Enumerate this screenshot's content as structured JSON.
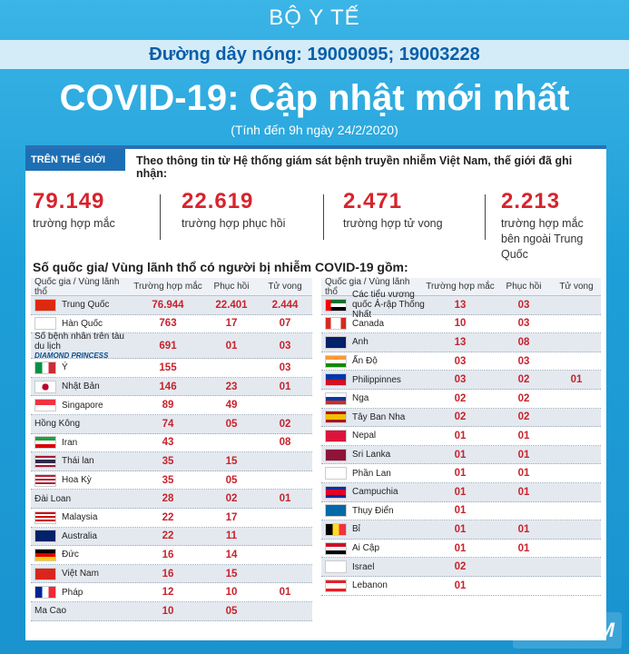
{
  "header": {
    "ministry": "BỘ Y TẾ",
    "hotline": "Đường dây nóng: 19009095; 19003228",
    "title": "COVID-19: Cập nhật mới nhất",
    "subtitle": "(Tính đến 9h ngày 24/2/2020)"
  },
  "world": {
    "tag": "TRÊN THẾ GIỚI",
    "intro": "Theo thông tin từ Hệ thống giám sát bệnh truyền nhiễm Việt Nam, thế giới đã ghi nhận:",
    "stats": [
      {
        "num": "79.149",
        "label": "trường hợp mắc"
      },
      {
        "num": "22.619",
        "label": "trường hợp phục hồi"
      },
      {
        "num": "2.471",
        "label": "trường hợp tử vong"
      },
      {
        "num": "2.213",
        "label": "trường hợp mắc bên ngoài Trung Quốc"
      }
    ],
    "count_title": "Số quốc gia/ Vùng lãnh thổ có người bị nhiễm COVID-19 gồm:"
  },
  "table_headers": {
    "name": "Quốc gia / Vùng lãnh thổ",
    "cases": "Trường hợp mắc",
    "recovered": "Phục hồi",
    "deaths": "Tử vong"
  },
  "left_rows": [
    {
      "name": "Trung Quốc",
      "cases": "76.944",
      "rec": "22.401",
      "dead": "2.444",
      "flag": "cn"
    },
    {
      "name": "Hàn Quốc",
      "cases": "763",
      "rec": "17",
      "dead": "07",
      "flag": "kr"
    },
    {
      "name": "Số bệnh nhân trên tàu du lịch",
      "cases": "691",
      "rec": "01",
      "dead": "03",
      "flag": "ship",
      "ship_label": "DIAMOND PRINCESS"
    },
    {
      "name": "Ý",
      "cases": "155",
      "rec": "",
      "dead": "03",
      "flag": "it"
    },
    {
      "name": "Nhật Bản",
      "cases": "146",
      "rec": "23",
      "dead": "01",
      "flag": "jp"
    },
    {
      "name": "Singapore",
      "cases": "89",
      "rec": "49",
      "dead": "",
      "flag": "sg"
    },
    {
      "name": "Hồng Kông",
      "cases": "74",
      "rec": "05",
      "dead": "02",
      "flag": ""
    },
    {
      "name": "Iran",
      "cases": "43",
      "rec": "",
      "dead": "08",
      "flag": "ir"
    },
    {
      "name": "Thái lan",
      "cases": "35",
      "rec": "15",
      "dead": "",
      "flag": "th"
    },
    {
      "name": "Hoa Kỳ",
      "cases": "35",
      "rec": "05",
      "dead": "",
      "flag": "us"
    },
    {
      "name": "Đài Loan",
      "cases": "28",
      "rec": "02",
      "dead": "01",
      "flag": ""
    },
    {
      "name": "Malaysia",
      "cases": "22",
      "rec": "17",
      "dead": "",
      "flag": "my"
    },
    {
      "name": "Australia",
      "cases": "22",
      "rec": "11",
      "dead": "",
      "flag": "au"
    },
    {
      "name": "Đức",
      "cases": "16",
      "rec": "14",
      "dead": "",
      "flag": "de"
    },
    {
      "name": "Việt Nam",
      "cases": "16",
      "rec": "15",
      "dead": "",
      "flag": "vn"
    },
    {
      "name": "Pháp",
      "cases": "12",
      "rec": "10",
      "dead": "01",
      "flag": "fr"
    },
    {
      "name": "Ma Cao",
      "cases": "10",
      "rec": "05",
      "dead": "",
      "flag": ""
    }
  ],
  "right_rows": [
    {
      "name": "Các tiểu vương quốc Ả-rập Thống Nhất",
      "cases": "13",
      "rec": "03",
      "dead": "",
      "flag": "ae"
    },
    {
      "name": "Canada",
      "cases": "10",
      "rec": "03",
      "dead": "",
      "flag": "ca"
    },
    {
      "name": "Anh",
      "cases": "13",
      "rec": "08",
      "dead": "",
      "flag": "gb"
    },
    {
      "name": "Ấn Độ",
      "cases": "03",
      "rec": "03",
      "dead": "",
      "flag": "in"
    },
    {
      "name": "Philippinnes",
      "cases": "03",
      "rec": "02",
      "dead": "01",
      "flag": "ph"
    },
    {
      "name": "Nga",
      "cases": "02",
      "rec": "02",
      "dead": "",
      "flag": "ru"
    },
    {
      "name": "Tây Ban Nha",
      "cases": "02",
      "rec": "02",
      "dead": "",
      "flag": "es"
    },
    {
      "name": "Nepal",
      "cases": "01",
      "rec": "01",
      "dead": "",
      "flag": "np"
    },
    {
      "name": "Sri Lanka",
      "cases": "01",
      "rec": "01",
      "dead": "",
      "flag": "lk"
    },
    {
      "name": "Phần Lan",
      "cases": "01",
      "rec": "01",
      "dead": "",
      "flag": "fi"
    },
    {
      "name": "Campuchia",
      "cases": "01",
      "rec": "01",
      "dead": "",
      "flag": "kh"
    },
    {
      "name": "Thụy Điển",
      "cases": "01",
      "rec": "",
      "dead": "",
      "flag": "se"
    },
    {
      "name": "Bỉ",
      "cases": "01",
      "rec": "01",
      "dead": "",
      "flag": "be"
    },
    {
      "name": "Ai Cập",
      "cases": "01",
      "rec": "01",
      "dead": "",
      "flag": "eg"
    },
    {
      "name": "Israel",
      "cases": "02",
      "rec": "",
      "dead": "",
      "flag": "il"
    },
    {
      "name": "Lebanon",
      "cases": "01",
      "rec": "",
      "dead": "",
      "flag": "lb"
    }
  ],
  "watermark": "VIETNAM"
}
